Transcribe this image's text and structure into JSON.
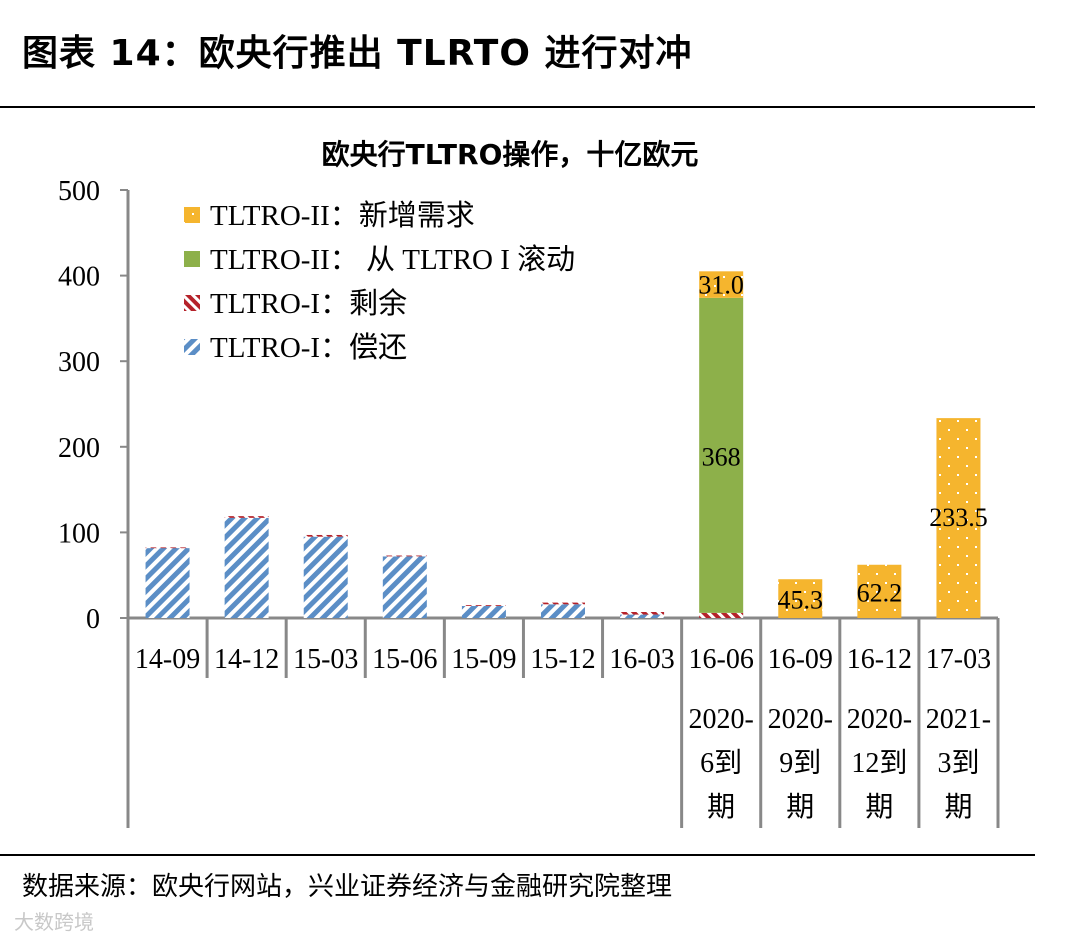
{
  "figure_title": "图表 14：欧央行推出 TLRTO 进行对冲",
  "source_note": "数据来源：欧央行网站，兴业证券经济与金融研究院整理",
  "watermark": "大数跨境",
  "colors": {
    "new_demand": "#f5b52e",
    "rollover": "#8db04a",
    "remaining": "#b5222a",
    "repaid": "#5b8ec6",
    "axis": "#888888"
  },
  "chart_data": {
    "type": "bar",
    "stacked": true,
    "title": "欧央行TLTRO操作，十亿欧元",
    "categories": [
      "14-09",
      "14-12",
      "15-03",
      "15-06",
      "15-09",
      "15-12",
      "16-03",
      "16-06",
      "16-09",
      "16-12",
      "17-03"
    ],
    "sub_labels": [
      "",
      "",
      "",
      "",
      "",
      "",
      "",
      "2020-6到期",
      "2020-9到期",
      "2020-12到期",
      "2021-3到期"
    ],
    "ylim": [
      0,
      500
    ],
    "yticks": [
      0,
      100,
      200,
      300,
      400,
      500
    ],
    "legend_position": "top-left",
    "series": [
      {
        "name": "TLTRO-I：偿还",
        "key": "repaid",
        "pattern": "stripe-blue",
        "values": [
          82,
          117,
          95,
          72,
          14,
          16,
          4,
          0,
          0,
          0,
          0
        ]
      },
      {
        "name": "TLTRO-I：剩余",
        "key": "remaining",
        "pattern": "stripe-red",
        "values": [
          0.5,
          2,
          2,
          1,
          1,
          2,
          3,
          6,
          0,
          0,
          0
        ]
      },
      {
        "name": "TLTRO-II： 从 TLTRO I 滚动",
        "key": "rollover",
        "pattern": "solid-green",
        "values": [
          0,
          0,
          0,
          0,
          0,
          0,
          0,
          368,
          0,
          0,
          0
        ]
      },
      {
        "name": "TLTRO-II：新增需求",
        "key": "new_demand",
        "pattern": "dots-orange",
        "values": [
          0,
          0,
          0,
          0,
          0,
          0,
          0,
          31.0,
          45.3,
          62.2,
          233.5
        ]
      }
    ],
    "legend_order": [
      "new_demand",
      "rollover",
      "remaining",
      "repaid"
    ],
    "data_labels": [
      {
        "category": "16-06",
        "series": "new_demand",
        "text": "31.0"
      },
      {
        "category": "16-06",
        "series": "rollover",
        "text": "368"
      },
      {
        "category": "16-09",
        "series": "new_demand",
        "text": "45.3"
      },
      {
        "category": "16-12",
        "series": "new_demand",
        "text": "62.2"
      },
      {
        "category": "17-03",
        "series": "new_demand",
        "text": "233.5"
      }
    ]
  }
}
